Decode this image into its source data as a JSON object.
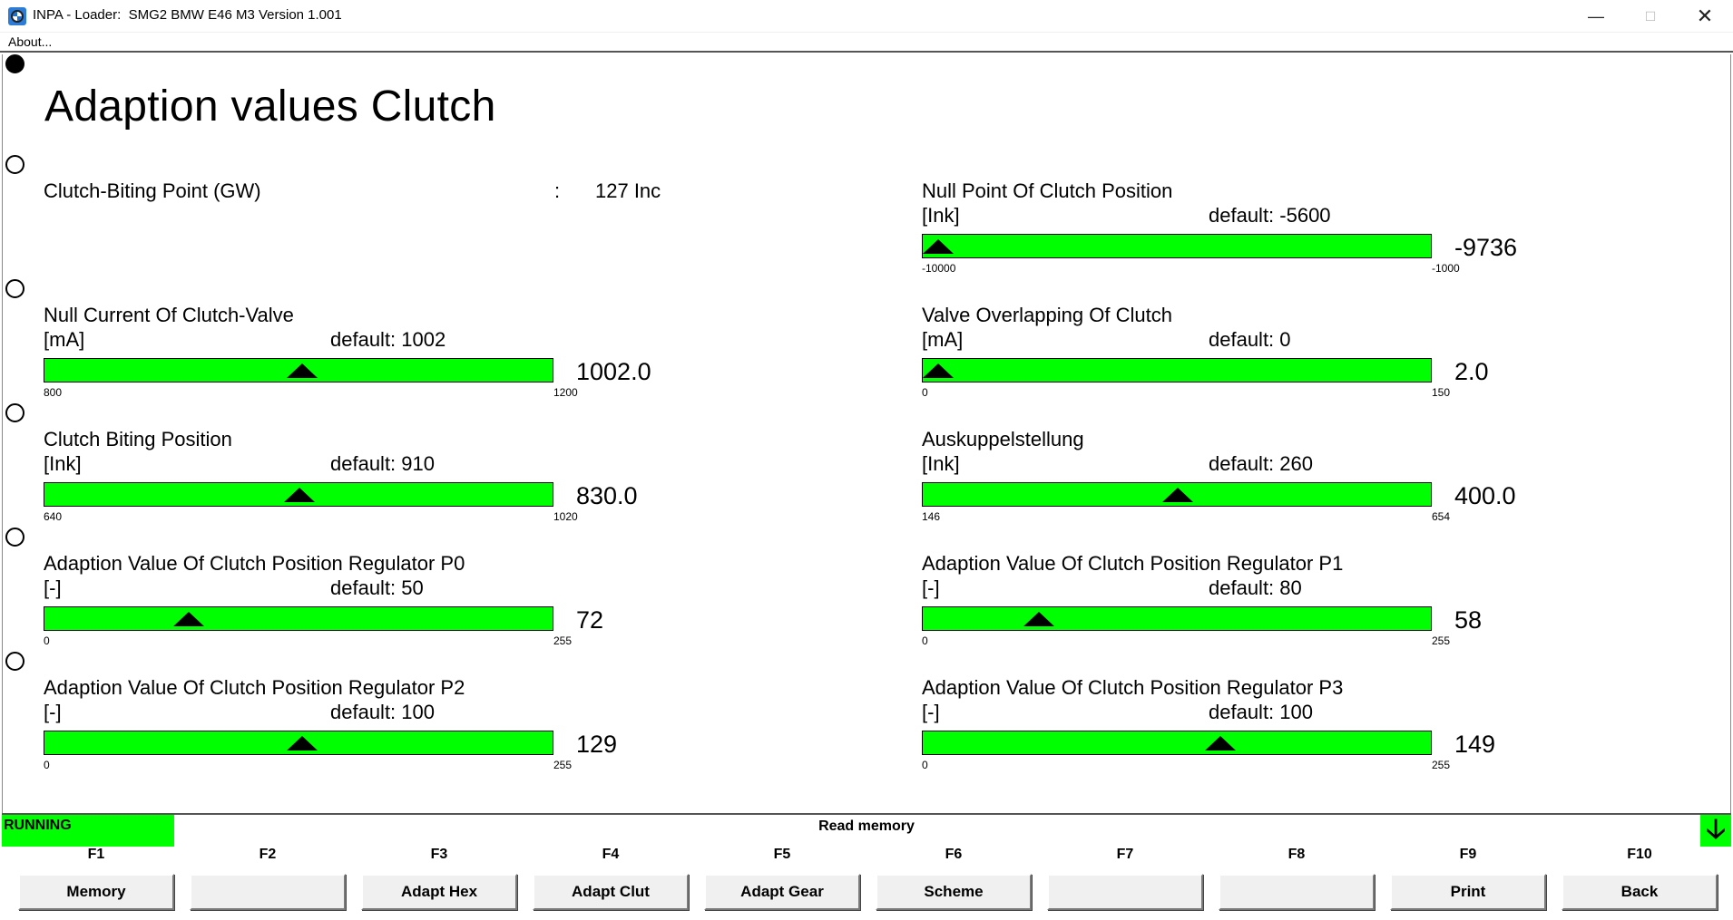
{
  "window": {
    "title": "INPA - Loader:  SMG2 BMW E46 M3 Version 1.001",
    "minimize_glyph": "—",
    "maximize_glyph": "☐",
    "close_glyph": "✕",
    "icon": "bmw-logo-icon"
  },
  "menu": {
    "about": "About..."
  },
  "page": {
    "title": "Adaption values Clutch"
  },
  "rows": [
    {
      "selected": true
    },
    {
      "selected": false
    },
    {
      "selected": false
    },
    {
      "selected": false
    },
    {
      "selected": false
    },
    {
      "selected": false
    }
  ],
  "biting_point": {
    "label": "Clutch-Biting Point (GW)",
    "colon": ":",
    "value": "127 Inc"
  },
  "gauges": [
    {
      "id": "null-point-clutch-position",
      "title": "Null Point Of Clutch Position",
      "unit": "[Ink]",
      "default": "default: -5600",
      "min_label": "-10000",
      "max_label": "-1000",
      "min": -10000,
      "max": -1000,
      "value": -9736,
      "value_text": "-9736"
    },
    {
      "id": "null-current-clutch-valve",
      "title": "Null Current Of Clutch-Valve",
      "unit": "[mA]",
      "default": "default: 1002",
      "min_label": "800",
      "max_label": "1200",
      "min": 800,
      "max": 1200,
      "value": 1002.0,
      "value_text": "1002.0"
    },
    {
      "id": "valve-overlapping-clutch",
      "title": "Valve Overlapping Of Clutch",
      "unit": "[mA]",
      "default": "default: 0",
      "min_label": "0",
      "max_label": "150",
      "min": 0,
      "max": 150,
      "value": 2.0,
      "value_text": "2.0"
    },
    {
      "id": "clutch-biting-position",
      "title": "Clutch Biting Position",
      "unit": "[Ink]",
      "default": "default: 910",
      "min_label": "640",
      "max_label": "1020",
      "min": 640,
      "max": 1020,
      "value": 830.0,
      "value_text": "830.0"
    },
    {
      "id": "auskuppelstellung",
      "title": "Auskuppelstellung",
      "unit": "[Ink]",
      "default": "default: 260",
      "min_label": "146",
      "max_label": "654",
      "min": 146,
      "max": 654,
      "value": 400.0,
      "value_text": "400.0"
    },
    {
      "id": "regulator-p0",
      "title": "Adaption Value Of Clutch Position Regulator P0",
      "unit": "[-]",
      "default": "default: 50",
      "min_label": "0",
      "max_label": "255",
      "min": 0,
      "max": 255,
      "value": 72,
      "value_text": "72"
    },
    {
      "id": "regulator-p1",
      "title": "Adaption Value Of Clutch Position Regulator P1",
      "unit": "[-]",
      "default": "default: 80",
      "min_label": "0",
      "max_label": "255",
      "min": 0,
      "max": 255,
      "value": 58,
      "value_text": "58"
    },
    {
      "id": "regulator-p2",
      "title": "Adaption Value Of Clutch Position Regulator P2",
      "unit": "[-]",
      "default": "default: 100",
      "min_label": "0",
      "max_label": "255",
      "min": 0,
      "max": 255,
      "value": 129,
      "value_text": "129"
    },
    {
      "id": "regulator-p3",
      "title": "Adaption Value Of Clutch Position Regulator P3",
      "unit": "[-]",
      "default": "default: 100",
      "min_label": "0",
      "max_label": "255",
      "min": 0,
      "max": 255,
      "value": 149,
      "value_text": "149"
    }
  ],
  "status": {
    "state": "RUNNING",
    "message": "Read memory",
    "scroll_glyph": "🡣"
  },
  "fkeys": [
    {
      "key": "F1",
      "label": "Memory"
    },
    {
      "key": "F2",
      "label": ""
    },
    {
      "key": "F3",
      "label": "Adapt Hex"
    },
    {
      "key": "F4",
      "label": "Adapt Clut"
    },
    {
      "key": "F5",
      "label": "Adapt Gear"
    },
    {
      "key": "F6",
      "label": "Scheme"
    },
    {
      "key": "F7",
      "label": ""
    },
    {
      "key": "F8",
      "label": ""
    },
    {
      "key": "F9",
      "label": "Print"
    },
    {
      "key": "F10",
      "label": "Back"
    }
  ],
  "colors": {
    "bar_fill": "#00ff00",
    "status_running": "#00ff00",
    "marker": "#000000"
  }
}
